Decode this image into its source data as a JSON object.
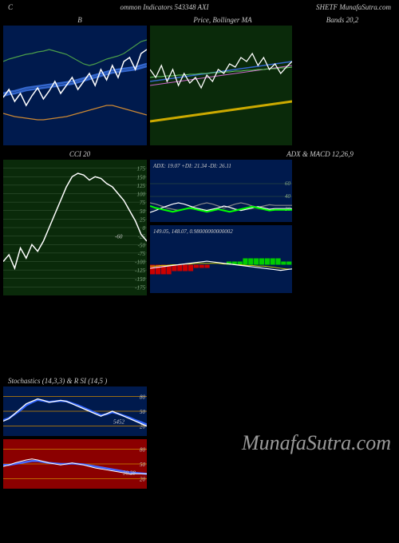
{
  "header": {
    "left": "C",
    "center": "ommon Indicators 543348 AXI",
    "right": "SHETF MunafaSutra.com"
  },
  "row1": {
    "left_label": "B",
    "center_label": "Price, Bollinger MA",
    "right_label": "Bands 20,2"
  },
  "panel_bb": {
    "bg": "#001a4d",
    "w": 180,
    "h": 150,
    "upper": [
      45,
      42,
      40,
      38,
      36,
      35,
      33,
      32,
      30,
      32,
      34,
      36,
      40,
      44,
      48,
      50,
      48,
      45,
      42,
      40,
      38,
      35,
      30,
      25,
      20,
      18
    ],
    "lower": [
      110,
      112,
      114,
      115,
      116,
      117,
      118,
      118,
      117,
      116,
      115,
      114,
      112,
      110,
      108,
      106,
      104,
      102,
      100,
      100,
      102,
      104,
      106,
      108,
      110,
      112
    ],
    "mid1": [
      85,
      83,
      82,
      80,
      78,
      77,
      76,
      75,
      74,
      73,
      72,
      71,
      70,
      68,
      66,
      64,
      62,
      60,
      58,
      56,
      55,
      54,
      53,
      52,
      50,
      48
    ],
    "mid2": [
      88,
      86,
      85,
      83,
      81,
      80,
      79,
      78,
      77,
      76,
      75,
      74,
      73,
      71,
      69,
      67,
      65,
      63,
      61,
      59,
      58,
      57,
      56,
      55,
      53,
      51
    ],
    "price": [
      90,
      80,
      95,
      85,
      100,
      88,
      78,
      92,
      82,
      70,
      85,
      75,
      65,
      80,
      70,
      60,
      75,
      55,
      68,
      50,
      65,
      45,
      40,
      55,
      35,
      30
    ],
    "colors": {
      "upper": "#4a9d4a",
      "lower": "#cc8833",
      "mid": "#3366cc",
      "price": "#ffffff"
    }
  },
  "panel_ma": {
    "bg": "#0a2a0a",
    "w": 178,
    "h": 150,
    "price": [
      55,
      65,
      50,
      70,
      55,
      75,
      60,
      72,
      65,
      78,
      62,
      70,
      55,
      60,
      48,
      52,
      40,
      45,
      35,
      50,
      40,
      55,
      48,
      60,
      52,
      45
    ],
    "ma1": [
      70,
      69,
      68,
      67,
      66,
      65,
      64,
      63,
      62,
      61,
      60,
      59,
      58,
      57,
      56,
      55,
      54,
      53,
      52,
      51,
      50,
      49,
      48,
      47,
      46,
      45
    ],
    "ma2": [
      75,
      74,
      73,
      72,
      71,
      70,
      69,
      68,
      67,
      66,
      65,
      64,
      63,
      62,
      61,
      60,
      59,
      58,
      57,
      56,
      55,
      54,
      53,
      52,
      51,
      50
    ],
    "ma3": [
      65,
      64,
      64,
      63,
      63,
      62,
      62,
      61,
      61,
      60,
      60,
      59,
      59,
      58,
      58,
      57,
      57,
      56,
      56,
      55,
      55,
      54,
      54,
      53,
      53,
      52
    ],
    "vol": [
      120,
      119,
      118,
      117,
      116,
      115,
      114,
      113,
      112,
      111,
      110,
      109,
      108,
      107,
      106,
      105,
      104,
      103,
      102,
      101,
      100,
      99,
      98,
      97,
      96,
      95
    ],
    "colors": {
      "price": "#ffffff",
      "ma1": "#3366cc",
      "ma2": "#cc66cc",
      "ma3": "#66cc66",
      "vol": "#ccaa00"
    }
  },
  "row2": {
    "left_label": "CCI 20",
    "right_label": "ADX   & MACD 12,26,9"
  },
  "panel_cci": {
    "bg": "#0a2a0a",
    "w": 180,
    "h": 170,
    "levels": [
      175,
      150,
      125,
      100,
      75,
      50,
      25,
      0,
      -25,
      -50,
      -75,
      -100,
      -125,
      -150,
      -175
    ],
    "highlight_label": "-60",
    "data": [
      -100,
      -80,
      -120,
      -60,
      -90,
      -50,
      -70,
      -40,
      0,
      40,
      80,
      120,
      150,
      160,
      155,
      140,
      150,
      145,
      130,
      120,
      100,
      80,
      50,
      20,
      -20,
      -40
    ],
    "line_color": "#ffffff",
    "grid_color": "#3a5a3a"
  },
  "panel_adx": {
    "bg": "#001a4d",
    "w": 178,
    "h": 78,
    "title": "ADX: 19.07 +DI: 21.34  -DI: 26.11",
    "levels": [
      60,
      40,
      20
    ],
    "adx": [
      25,
      22,
      20,
      18,
      16,
      18,
      20,
      22,
      20,
      18,
      16,
      18,
      20,
      18,
      16,
      18,
      20,
      22,
      24,
      22,
      20,
      18,
      19,
      19,
      19,
      19
    ],
    "pdi": [
      15,
      18,
      22,
      25,
      28,
      30,
      28,
      25,
      22,
      20,
      18,
      20,
      22,
      25,
      23,
      20,
      18,
      20,
      22,
      24,
      22,
      20,
      21,
      21,
      21,
      21
    ],
    "mdi": [
      30,
      28,
      25,
      22,
      20,
      18,
      20,
      22,
      25,
      28,
      30,
      28,
      25,
      22,
      25,
      28,
      30,
      28,
      25,
      23,
      25,
      27,
      26,
      26,
      26,
      26
    ],
    "colors": {
      "adx": "#00ff00",
      "pdi": "#ffffff",
      "mdi": "#888888"
    },
    "grid_color": "#3a5a3a"
  },
  "panel_macd": {
    "bg": "#001a4d",
    "w": 178,
    "h": 85,
    "title": "149.05, 148.07, 0.98000000000002",
    "hist": [
      -3,
      -3,
      -3,
      -3,
      -2,
      -2,
      -2,
      -2,
      -1,
      -1,
      -1,
      0,
      0,
      0,
      1,
      1,
      1,
      2,
      2,
      2,
      2,
      2,
      2,
      2,
      1,
      1
    ],
    "macd": [
      35,
      36,
      37,
      38,
      39,
      40,
      41,
      42,
      43,
      44,
      45,
      44,
      43,
      42,
      41,
      40,
      39,
      38,
      37,
      36,
      35,
      34,
      33,
      32,
      33,
      34
    ],
    "signal": [
      38,
      38,
      39,
      39,
      40,
      40,
      41,
      41,
      42,
      42,
      42,
      42,
      42,
      41,
      41,
      40,
      40,
      39,
      39,
      38,
      38,
      37,
      36,
      35,
      34,
      34
    ],
    "colors": {
      "hist_pos": "#00cc00",
      "hist_neg": "#cc0000",
      "macd": "#ffffff",
      "signal": "#cccc00"
    }
  },
  "row3": {
    "label": "Stochastics                    (14,3,3) & R                    SI                           (14,5                              )"
  },
  "panel_stoch": {
    "bg": "#001a4d",
    "w": 180,
    "h": 62,
    "levels": [
      80,
      50,
      20
    ],
    "mark": "5452",
    "k": [
      30,
      35,
      45,
      55,
      65,
      70,
      75,
      72,
      68,
      70,
      72,
      70,
      65,
      60,
      55,
      50,
      45,
      40,
      45,
      50,
      45,
      40,
      35,
      30,
      25,
      20
    ],
    "d": [
      32,
      36,
      44,
      52,
      62,
      68,
      73,
      71,
      69,
      70,
      71,
      70,
      66,
      62,
      57,
      52,
      47,
      42,
      44,
      48,
      45,
      41,
      37,
      32,
      28,
      23
    ],
    "colors": {
      "k": "#ffffff",
      "d": "#3366ff",
      "level": "#cc8800"
    }
  },
  "panel_rsi": {
    "bg": "#8b0000",
    "w": 180,
    "h": 62,
    "levels": [
      80,
      50,
      20
    ],
    "mark": "30.28",
    "rsi": [
      45,
      48,
      52,
      55,
      58,
      60,
      58,
      55,
      52,
      50,
      48,
      50,
      52,
      50,
      48,
      45,
      42,
      40,
      38,
      36,
      34,
      32,
      30,
      30,
      30,
      30
    ],
    "ma": [
      48,
      48,
      50,
      52,
      54,
      56,
      56,
      54,
      52,
      51,
      50,
      50,
      51,
      50,
      49,
      47,
      45,
      43,
      41,
      39,
      37,
      35,
      33,
      32,
      31,
      30
    ],
    "colors": {
      "rsi": "#ffffff",
      "ma": "#4466ff",
      "level": "#cc8800"
    }
  },
  "watermark": "MunafaSutra.com"
}
